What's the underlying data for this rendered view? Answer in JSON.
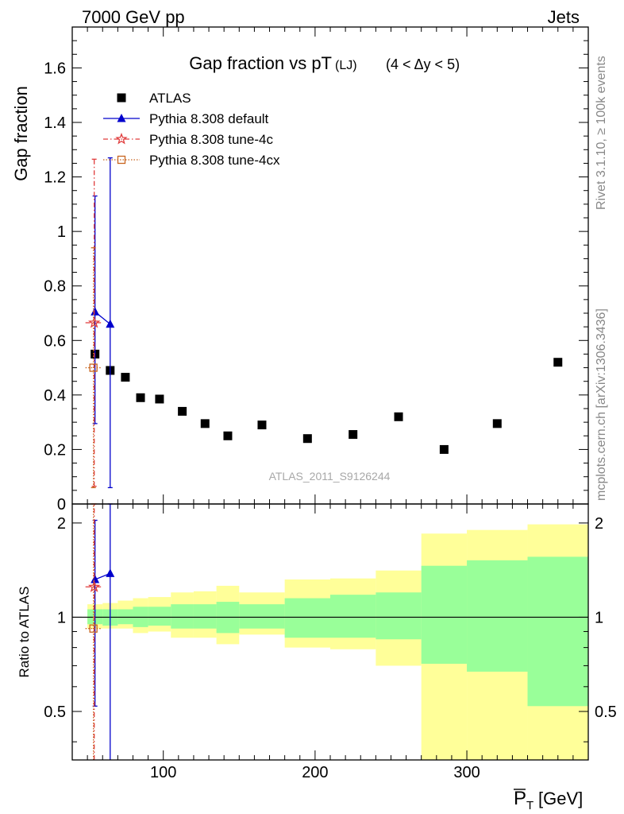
{
  "header": {
    "energy": "7000 GeV pp",
    "process": "Jets"
  },
  "side_labels": {
    "rivet": "Rivet 3.1.10, ≥ 100k events",
    "mcplots": "mcplots.cern.ch [arXiv:1306.3436]"
  },
  "chart_data": [
    {
      "type": "scatter",
      "title": "Gap fraction vs pT",
      "title_sub": "(LJ)",
      "title_range": "(4 < Δy < 5)",
      "ylabel": "Gap fraction",
      "watermark": "ATLAS_2011_S9126244",
      "xlim": [
        40,
        380
      ],
      "ylim": [
        0,
        1.75
      ],
      "yticks": [
        0,
        0.2,
        0.4,
        0.6,
        0.8,
        1,
        1.2,
        1.4,
        1.6
      ],
      "ytick_labels": [
        "0",
        "0.2",
        "0.4",
        "0.6",
        "0.8",
        "1",
        "1.2",
        "1.4",
        "1.6"
      ],
      "legend_position": "top-left",
      "series": [
        {
          "name": "ATLAS",
          "color": "#000000",
          "marker": "square",
          "x": [
            55,
            65,
            75,
            85,
            97.5,
            112.5,
            127.5,
            142.5,
            165,
            195,
            225,
            255,
            285,
            320,
            360
          ],
          "y": [
            0.55,
            0.49,
            0.465,
            0.39,
            0.385,
            0.34,
            0.295,
            0.25,
            0.29,
            0.24,
            0.255,
            0.32,
            0.2,
            0.295,
            0.52
          ]
        },
        {
          "name": "Pythia 8.308 default",
          "color": "#0000cc",
          "marker": "triangle",
          "x": [
            55,
            65
          ],
          "y": [
            0.705,
            0.66
          ],
          "yerr_low": [
            0.41,
            0.6
          ],
          "yerr_high": [
            0.425,
            0.61
          ]
        },
        {
          "name": "Pythia 8.308 tune-4c",
          "color": "#e03c3c",
          "marker": "star",
          "x": [
            55
          ],
          "y": [
            0.665
          ],
          "yerr_low": [
            0.6
          ],
          "yerr_high": [
            0.6
          ]
        },
        {
          "name": "Pythia 8.308 tune-4cx",
          "color": "#c8641e",
          "marker": "open-square",
          "x": [
            55
          ],
          "y": [
            0.5
          ],
          "yerr_low": [
            0.44
          ],
          "yerr_high": [
            0.44
          ]
        }
      ]
    },
    {
      "type": "area",
      "ylabel": "Ratio to ATLAS",
      "xlabel": "P_T [GeV]",
      "xlabel_symbol": "P",
      "xlabel_sub": "T",
      "xlabel_unit": "[GeV]",
      "xlim": [
        40,
        380
      ],
      "ylim": [
        0.35,
        2.3
      ],
      "log_y": true,
      "xticks": [
        100,
        200,
        300
      ],
      "xtick_labels": [
        "100",
        "200",
        "300"
      ],
      "yticks": [
        0.5,
        1,
        2
      ],
      "ytick_labels": [
        "0.5",
        "1",
        "2"
      ],
      "bands": {
        "edges": [
          50,
          60,
          70,
          80,
          90,
          105,
          120,
          135,
          150,
          180,
          210,
          240,
          270,
          300,
          340,
          380
        ],
        "green_low": [
          0.95,
          0.94,
          0.95,
          0.93,
          0.94,
          0.92,
          0.92,
          0.89,
          0.92,
          0.86,
          0.86,
          0.85,
          0.71,
          0.67,
          0.52
        ],
        "green_high": [
          1.06,
          1.06,
          1.06,
          1.08,
          1.08,
          1.1,
          1.1,
          1.12,
          1.1,
          1.15,
          1.18,
          1.2,
          1.46,
          1.52,
          1.56
        ],
        "yellow_low": [
          0.92,
          0.92,
          0.92,
          0.89,
          0.9,
          0.86,
          0.86,
          0.82,
          0.88,
          0.8,
          0.79,
          0.7,
          0.35,
          0.35,
          0.35
        ],
        "yellow_high": [
          1.1,
          1.11,
          1.13,
          1.15,
          1.16,
          1.2,
          1.21,
          1.26,
          1.2,
          1.32,
          1.33,
          1.41,
          1.85,
          1.9,
          1.98
        ]
      },
      "series": [
        {
          "name": "Pythia 8.308 default",
          "color": "#0000cc",
          "x": [
            55,
            65
          ],
          "y": [
            1.32,
            1.38
          ],
          "yerr_low": [
            0.52,
            0.35
          ],
          "yerr_high": [
            2.04,
            2.4
          ]
        },
        {
          "name": "Pythia 8.308 tune-4c",
          "color": "#e03c3c",
          "x": [
            55
          ],
          "y": [
            1.25
          ],
          "yerr_low": [
            0.35
          ],
          "yerr_high": [
            2.3
          ]
        },
        {
          "name": "Pythia 8.308 tune-4cx",
          "color": "#c8641e",
          "x": [
            55
          ],
          "y": [
            0.92
          ],
          "yerr_low": [
            0.35
          ],
          "yerr_high": [
            2.3
          ]
        }
      ]
    }
  ]
}
